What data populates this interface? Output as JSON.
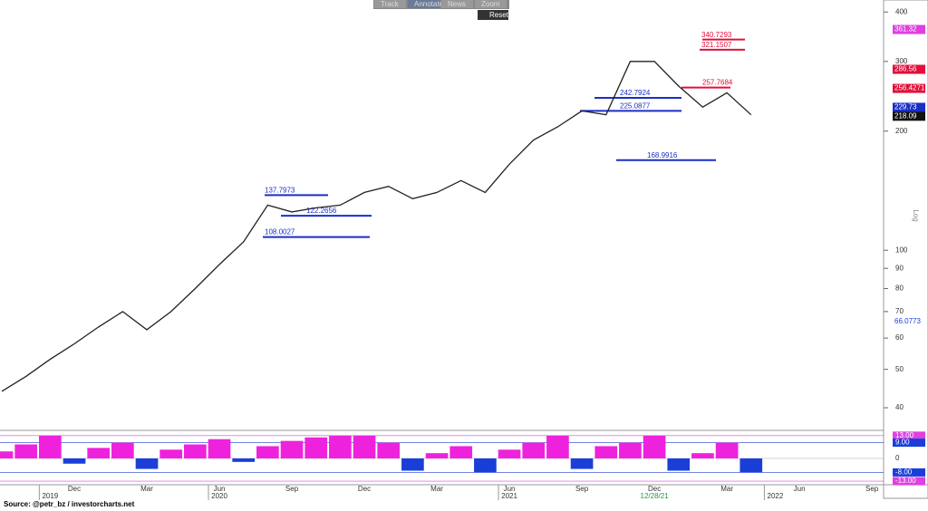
{
  "toolbar": {
    "buttons": [
      "Track",
      "Annotate",
      "News",
      "Zoom"
    ],
    "reset": "Reset"
  },
  "source": "Source: @petr_bz / investorcharts.net",
  "axis_note": "Log",
  "cursor_label": "12/28/21",
  "chart_data": [
    {
      "type": "line",
      "log_scale": true,
      "color": "#222222",
      "categories": [
        null,
        null,
        null,
        "Dec",
        null,
        null,
        "Mar",
        null,
        null,
        "Jun",
        null,
        null,
        "Sep",
        null,
        null,
        "Dec",
        null,
        null,
        "Mar",
        null,
        null,
        "Jun",
        null,
        null,
        "Sep",
        null,
        null,
        "Dec",
        null,
        null,
        "Mar",
        null,
        null,
        "Jun",
        null,
        null,
        "Sep"
      ],
      "year_labels": [
        null,
        null,
        "2019",
        null,
        null,
        null,
        null,
        null,
        null,
        "2020",
        null,
        null,
        null,
        null,
        null,
        null,
        null,
        null,
        null,
        null,
        null,
        "2021",
        null,
        null,
        null,
        null,
        null,
        null,
        null,
        null,
        null,
        null,
        "2022",
        null,
        null,
        null,
        null
      ],
      "values": [
        44,
        48,
        53,
        58,
        64,
        70,
        63,
        70,
        80,
        92,
        105,
        130,
        125,
        128,
        130,
        140,
        145,
        135,
        140,
        150,
        140,
        165,
        190,
        205,
        225,
        220,
        300,
        300,
        260,
        230,
        250,
        220,
        null,
        null,
        null,
        null,
        null
      ],
      "ylim": [
        36,
        420
      ],
      "yticks": [
        40,
        50,
        60,
        70,
        80,
        90,
        100,
        200,
        300,
        400
      ],
      "levels": [
        {
          "value": 340.7293,
          "color": "#e0103a"
        },
        {
          "value": 321.1507,
          "color": "#e0103a"
        },
        {
          "value": 257.7684,
          "color": "#e0103a"
        },
        {
          "value": 242.7924,
          "color": "#1a2fc8"
        },
        {
          "value": 225.0877,
          "color": "#1a2fc8"
        },
        {
          "value": 168.9916,
          "color": "#1a2fc8"
        },
        {
          "value": 137.7973,
          "color": "#1a2fc8"
        },
        {
          "value": 122.2656,
          "color": "#1a2fc8"
        },
        {
          "value": 108.0027,
          "color": "#1a2fc8"
        }
      ],
      "annotations": [
        {
          "value": 361.32,
          "color": "#e040e0"
        },
        {
          "value": 286.56,
          "color": "#e0103a"
        },
        {
          "value": 256.4271,
          "color": "#e0103a"
        },
        {
          "value": 229.73,
          "color": "#1a2fc8"
        },
        {
          "value": 218.09,
          "color": "#111111"
        },
        {
          "value": 66.0773,
          "color": null
        }
      ]
    },
    {
      "type": "bar",
      "pos_color": "#ee22dd",
      "neg_color": "#1a3fd8",
      "values": [
        4,
        8,
        13,
        -3,
        6,
        9,
        -6,
        5,
        8,
        11,
        -2,
        7,
        10,
        12,
        13,
        13,
        9,
        -7,
        3,
        7,
        -8,
        5,
        9,
        13,
        -6,
        7,
        9,
        13,
        -7,
        3,
        9,
        -8,
        null,
        null,
        null,
        null,
        null
      ],
      "ylim": [
        -14,
        15
      ],
      "yticks": [
        {
          "value": 13,
          "label": "13.00"
        },
        {
          "value": 9,
          "label": "9.00"
        },
        0,
        {
          "value": -8,
          "label": "-8.00"
        },
        {
          "value": -13,
          "label": "-13.00"
        }
      ],
      "ytick_colors": [
        "#e040e0",
        "#1a3fd8",
        null,
        "#1a3fd8",
        "#e040e0"
      ]
    }
  ]
}
